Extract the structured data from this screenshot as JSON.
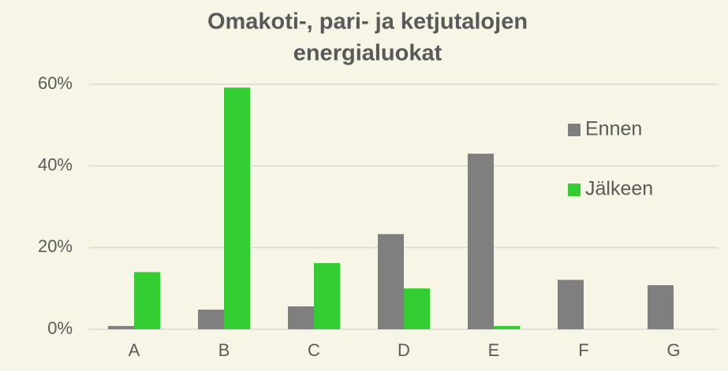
{
  "chart_data": {
    "type": "bar",
    "title": [
      "Omakoti-, pari- ja ketjutalojen",
      "energialuokat"
    ],
    "categories": [
      "A",
      "B",
      "C",
      "D",
      "E",
      "F",
      "G"
    ],
    "series": [
      {
        "name": "Ennen",
        "color": "#7f7f7f",
        "values": [
          0.8,
          4.8,
          5.6,
          23.3,
          43,
          12.1,
          10.8
        ]
      },
      {
        "name": "Jälkeen",
        "color": "#33cc33",
        "values": [
          14,
          59.2,
          16.2,
          10,
          0.8,
          0,
          0
        ]
      }
    ],
    "ylim": [
      0,
      60
    ],
    "yticks": [
      {
        "value": 0,
        "label": "0%"
      },
      {
        "value": 20,
        "label": "20%"
      },
      {
        "value": 40,
        "label": "40%"
      },
      {
        "value": 60,
        "label": "60%"
      }
    ],
    "grid": true,
    "legend": "right"
  }
}
